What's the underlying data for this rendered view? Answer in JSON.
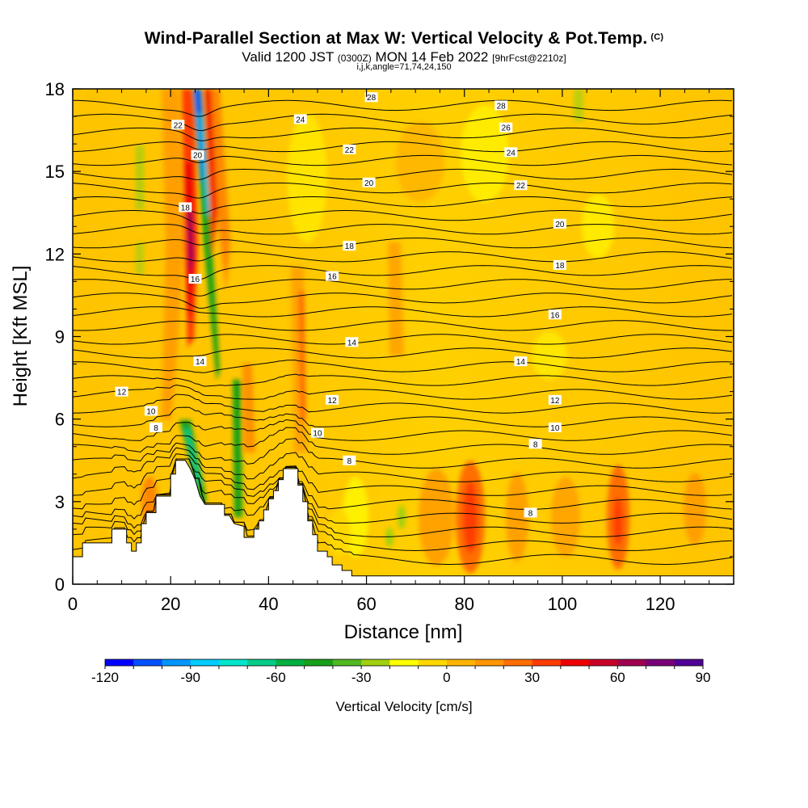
{
  "title": {
    "main": "Wind-Parallel Section at Max W: Vertical Velocity & Pot.Temp.",
    "copyright": "(C)",
    "valid_prefix": "Valid 1200 JST",
    "valid_utc": "(0300Z)",
    "valid_date": "MON 14 Feb 2022",
    "forecast": "[9hrFcst@2210z]",
    "params": "i,j,k,angle=71,74,24,150"
  },
  "chart_data": {
    "type": "heatmap",
    "title": "Wind-Parallel Section at Max W: Vertical Velocity & Pot.Temp.",
    "xlabel": "Distance [nm]",
    "ylabel": "Height [Kft MSL]",
    "xlim": [
      0,
      135
    ],
    "ylim": [
      0,
      18
    ],
    "x_ticks": [
      0,
      20,
      40,
      60,
      80,
      100,
      120
    ],
    "x_tick_labels": [
      "0",
      "20",
      "40",
      "60",
      "80",
      "100",
      "120"
    ],
    "y_ticks": [
      0,
      3,
      6,
      9,
      12,
      15,
      18
    ],
    "y_tick_labels": [
      "0",
      "3",
      "6",
      "9",
      "12",
      "15",
      "18"
    ],
    "colorbar": {
      "label": "Vertical Velocity [cm/s]",
      "min": -120,
      "max": 90,
      "step": 10,
      "tick_values": [
        -120,
        -90,
        -60,
        -30,
        0,
        30,
        60,
        90
      ],
      "tick_labels": [
        "-120",
        "-90",
        "-60",
        "-30",
        "0",
        "30",
        "60",
        "90"
      ],
      "colors": [
        "#0000ff",
        "#0050ff",
        "#0096ff",
        "#00ccff",
        "#00e6cc",
        "#00cc88",
        "#00b040",
        "#18a018",
        "#50b820",
        "#a0d010",
        "#ffff00",
        "#ffd800",
        "#ffb400",
        "#ff9600",
        "#ff6e00",
        "#ff3c00",
        "#ee0000",
        "#c80028",
        "#a00050",
        "#780078",
        "#500096"
      ]
    },
    "terrain": [
      [
        0,
        1
      ],
      [
        2,
        1
      ],
      [
        2,
        1.5
      ],
      [
        5,
        1.5
      ],
      [
        8,
        1.5
      ],
      [
        8,
        2
      ],
      [
        10,
        2
      ],
      [
        11,
        2
      ],
      [
        11,
        1.5
      ],
      [
        12,
        1.5
      ],
      [
        12,
        1.2
      ],
      [
        13,
        1.2
      ],
      [
        13,
        1.5
      ],
      [
        14,
        1.5
      ],
      [
        14,
        2.2
      ],
      [
        15,
        2.2
      ],
      [
        15,
        2.6
      ],
      [
        16,
        2.6
      ],
      [
        17,
        2.6
      ],
      [
        17,
        3.2
      ],
      [
        18,
        3.2
      ],
      [
        20,
        3.2
      ],
      [
        20,
        4
      ],
      [
        21,
        4
      ],
      [
        21,
        4.5
      ],
      [
        22,
        4.5
      ],
      [
        23,
        4.5
      ],
      [
        24,
        4.2
      ],
      [
        25,
        3.8
      ],
      [
        26,
        3.2
      ],
      [
        27,
        2.9
      ],
      [
        29,
        2.9
      ],
      [
        31,
        2.9
      ],
      [
        31,
        2.5
      ],
      [
        32,
        2.5
      ],
      [
        33,
        2.2
      ],
      [
        35,
        2.1
      ],
      [
        35,
        1.7
      ],
      [
        36,
        1.7
      ],
      [
        37,
        1.7
      ],
      [
        37,
        2.0
      ],
      [
        38,
        2.0
      ],
      [
        38,
        2.3
      ],
      [
        39,
        2.3
      ],
      [
        39,
        2.7
      ],
      [
        40,
        2.7
      ],
      [
        40,
        3.1
      ],
      [
        41,
        3.1
      ],
      [
        41,
        3.4
      ],
      [
        42,
        3.4
      ],
      [
        42,
        3.8
      ],
      [
        43,
        3.8
      ],
      [
        43,
        4.2
      ],
      [
        46,
        4.2
      ],
      [
        46,
        3.6
      ],
      [
        47,
        3.6
      ],
      [
        47,
        3.0
      ],
      [
        48,
        3.0
      ],
      [
        48,
        2.3
      ],
      [
        49,
        2.3
      ],
      [
        49,
        1.8
      ],
      [
        50,
        1.8
      ],
      [
        50,
        1.2
      ],
      [
        52,
        1.2
      ],
      [
        52,
        1.0
      ],
      [
        53,
        1.0
      ],
      [
        53,
        0.7
      ],
      [
        55,
        0.7
      ],
      [
        55,
        0.5
      ],
      [
        57,
        0.5
      ],
      [
        57,
        0.3
      ],
      [
        135,
        0.3
      ]
    ],
    "contour_labels": [
      {
        "text": "28",
        "x": 61,
        "y": 17.7
      },
      {
        "text": "28",
        "x": 87.5,
        "y": 17.4
      },
      {
        "text": "24",
        "x": 46.5,
        "y": 16.9
      },
      {
        "text": "26",
        "x": 88.5,
        "y": 16.6
      },
      {
        "text": "22",
        "x": 21.5,
        "y": 16.7
      },
      {
        "text": "22",
        "x": 56.5,
        "y": 15.8
      },
      {
        "text": "24",
        "x": 89.5,
        "y": 15.7
      },
      {
        "text": "20",
        "x": 25.5,
        "y": 15.6
      },
      {
        "text": "20",
        "x": 60.5,
        "y": 14.6
      },
      {
        "text": "22",
        "x": 91.5,
        "y": 14.5
      },
      {
        "text": "18",
        "x": 23,
        "y": 13.7
      },
      {
        "text": "20",
        "x": 99.5,
        "y": 13.1
      },
      {
        "text": "18",
        "x": 56.5,
        "y": 12.3
      },
      {
        "text": "18",
        "x": 99.5,
        "y": 11.6
      },
      {
        "text": "16",
        "x": 25,
        "y": 11.1
      },
      {
        "text": "16",
        "x": 53,
        "y": 11.2
      },
      {
        "text": "16",
        "x": 98.5,
        "y": 9.8
      },
      {
        "text": "14",
        "x": 57,
        "y": 8.8
      },
      {
        "text": "14",
        "x": 26,
        "y": 8.1
      },
      {
        "text": "14",
        "x": 91.5,
        "y": 8.1
      },
      {
        "text": "12",
        "x": 10,
        "y": 7.0
      },
      {
        "text": "12",
        "x": 53,
        "y": 6.7
      },
      {
        "text": "12",
        "x": 98.5,
        "y": 6.7
      },
      {
        "text": "10",
        "x": 16,
        "y": 6.3
      },
      {
        "text": "10",
        "x": 50,
        "y": 5.5
      },
      {
        "text": "10",
        "x": 98.5,
        "y": 5.7
      },
      {
        "text": "8",
        "x": 17,
        "y": 5.7
      },
      {
        "text": "8",
        "x": 94.5,
        "y": 5.1
      },
      {
        "text": "8",
        "x": 56.5,
        "y": 4.5
      },
      {
        "text": "8",
        "x": 93.5,
        "y": 2.6
      }
    ]
  }
}
